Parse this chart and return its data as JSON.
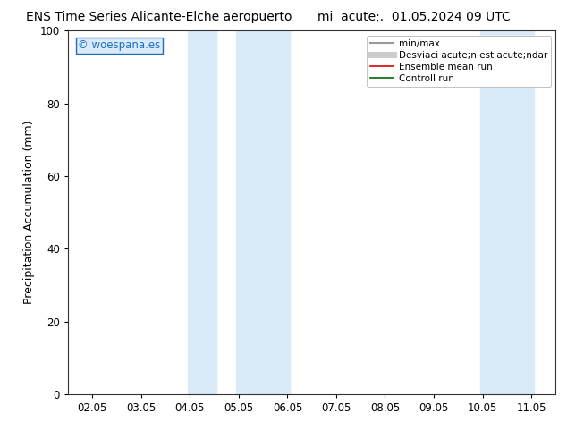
{
  "title_left": "ENS Time Series Alicante-Elche aeropuerto",
  "title_right": "mi  acute;.  01.05.2024 09 UTC",
  "ylabel": "Precipitation Accumulation (mm)",
  "ylim": [
    0,
    100
  ],
  "yticks": [
    0,
    20,
    40,
    60,
    80,
    100
  ],
  "xtick_labels": [
    "02.05",
    "03.05",
    "04.05",
    "05.05",
    "06.05",
    "07.05",
    "08.05",
    "09.05",
    "10.05",
    "11.05"
  ],
  "xtick_positions": [
    0,
    1,
    2,
    3,
    4,
    5,
    6,
    7,
    8,
    9
  ],
  "xlim": [
    -0.5,
    9.5
  ],
  "shaded_bands": [
    {
      "xmin": 1.95,
      "xmax": 2.55,
      "color": "#daeaf7"
    },
    {
      "xmin": 2.95,
      "xmax": 4.05,
      "color": "#daeaf7"
    },
    {
      "xmin": 7.95,
      "xmax": 9.05,
      "color": "#daeaf7"
    }
  ],
  "watermark_text": "© woespana.es",
  "watermark_color": "#1a6fc4",
  "watermark_bg": "#daeaf7",
  "background_color": "#ffffff",
  "plot_bg_color": "#ffffff",
  "legend_entries": [
    {
      "label": "min/max",
      "color": "#999999",
      "linewidth": 1.5,
      "type": "line"
    },
    {
      "label": "Desviaci acute;n est acute;ndar",
      "color": "#cccccc",
      "linewidth": 5,
      "type": "line"
    },
    {
      "label": "Ensemble mean run",
      "color": "#dd0000",
      "linewidth": 1.2,
      "type": "line"
    },
    {
      "label": "Controll run",
      "color": "#006600",
      "linewidth": 1.2,
      "type": "line"
    }
  ],
  "title_fontsize": 10,
  "tick_fontsize": 8.5,
  "label_fontsize": 9,
  "legend_fontsize": 7.5
}
